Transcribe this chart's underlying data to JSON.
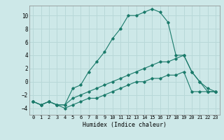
{
  "xlabel": "Humidex (Indice chaleur)",
  "ylabel": "",
  "background_color": "#cde8e8",
  "grid_color": "#b8d8d8",
  "line_color": "#1a7a6a",
  "xlim": [
    -0.5,
    23.5
  ],
  "ylim": [
    -5,
    11.5
  ],
  "yticks": [
    -4,
    -2,
    0,
    2,
    4,
    6,
    8,
    10
  ],
  "xticks": [
    0,
    1,
    2,
    3,
    4,
    5,
    6,
    7,
    8,
    9,
    10,
    11,
    12,
    13,
    14,
    15,
    16,
    17,
    18,
    19,
    20,
    21,
    22,
    23
  ],
  "series1_x": [
    0,
    1,
    2,
    3,
    4,
    5,
    6,
    7,
    8,
    9,
    10,
    11,
    12,
    13,
    14,
    15,
    16,
    17,
    18,
    19,
    20,
    21,
    22,
    23
  ],
  "series1_y": [
    -3,
    -3.5,
    -3,
    -3.5,
    -3.5,
    -1,
    -0.5,
    1.5,
    3,
    4.5,
    6.5,
    8,
    10,
    10,
    10.5,
    11,
    10.5,
    9,
    4,
    4,
    1.5,
    0,
    -1.5,
    -1.5
  ],
  "series2_x": [
    0,
    1,
    2,
    3,
    4,
    5,
    6,
    7,
    8,
    9,
    10,
    11,
    12,
    13,
    14,
    15,
    16,
    17,
    18,
    19,
    20,
    21,
    22,
    23
  ],
  "series2_y": [
    -3,
    -3.5,
    -3,
    -3.5,
    -3.5,
    -2.5,
    -2,
    -1.5,
    -1,
    -0.5,
    0,
    0.5,
    1,
    1.5,
    2,
    2.5,
    3,
    3,
    3.5,
    4,
    1.5,
    0,
    -1,
    -1.5
  ],
  "series3_x": [
    0,
    1,
    2,
    3,
    4,
    5,
    6,
    7,
    8,
    9,
    10,
    11,
    12,
    13,
    14,
    15,
    16,
    17,
    18,
    19,
    20,
    21,
    22,
    23
  ],
  "series3_y": [
    -3,
    -3.5,
    -3,
    -3.5,
    -4,
    -3.5,
    -3,
    -2.5,
    -2.5,
    -2,
    -1.5,
    -1,
    -0.5,
    0,
    0,
    0.5,
    0.5,
    1,
    1,
    1.5,
    -1.5,
    -1.5,
    -1.5,
    -1.5
  ]
}
